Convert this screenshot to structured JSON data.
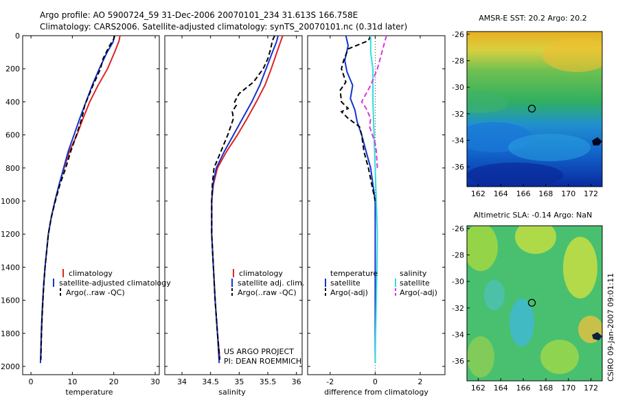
{
  "header": {
    "line1": "Argo profile: AO 5900724_59 31-Dec-2006 20070101_234 31.613S 166.758E",
    "line2": "Climatology: CARS2006. Satellite-adjusted climatology: synTS_20070101.nc (0.31d later)"
  },
  "credit": {
    "line1": "US ARGO PROJECT",
    "line2": "PI: DEAN ROEMMICH"
  },
  "stamp": "CSIRO 09-Jan-2007 09:01:11",
  "colors": {
    "climatology": "#dd2222",
    "satellite": "#1133cc",
    "argo": "#000000",
    "sal_satellite": "#33dddd",
    "sal_argo": "#dd33dd"
  },
  "chart_data": [
    {
      "type": "line",
      "panel": "temperature",
      "xlabel": "temperature",
      "ylabel": "",
      "xlim": [
        -2,
        31
      ],
      "ylim": [
        2050,
        0
      ],
      "xticks": [
        0,
        10,
        20,
        30
      ],
      "yticks": [
        0,
        200,
        400,
        600,
        800,
        1000,
        1200,
        1400,
        1600,
        1800,
        2000
      ],
      "legend": {
        "position": "lower-right",
        "entries": [
          "climatology",
          "satellite-adjusted climatology",
          "Argo(..raw -QC)"
        ]
      },
      "series": [
        {
          "name": "climatology",
          "style": "solid",
          "colorKey": "climatology",
          "points": [
            [
              21.5,
              0
            ],
            [
              21.3,
              30
            ],
            [
              20.2,
              100
            ],
            [
              18.5,
              200
            ],
            [
              16.2,
              300
            ],
            [
              14.2,
              400
            ],
            [
              12.6,
              500
            ],
            [
              11.1,
              600
            ],
            [
              9.3,
              700
            ],
            [
              8.0,
              800
            ],
            [
              6.8,
              900
            ],
            [
              5.8,
              1000
            ],
            [
              4.9,
              1100
            ],
            [
              4.2,
              1200
            ],
            [
              3.8,
              1300
            ],
            [
              3.4,
              1400
            ],
            [
              3.1,
              1500
            ],
            [
              2.9,
              1600
            ],
            [
              2.7,
              1700
            ],
            [
              2.55,
              1800
            ],
            [
              2.45,
              1900
            ],
            [
              2.4,
              1960
            ]
          ]
        },
        {
          "name": "satellite-adjusted climatology",
          "style": "solid",
          "colorKey": "satellite",
          "points": [
            [
              20.2,
              0
            ],
            [
              19.8,
              40
            ],
            [
              18.4,
              100
            ],
            [
              16.5,
              200
            ],
            [
              14.8,
              300
            ],
            [
              13.3,
              400
            ],
            [
              11.8,
              500
            ],
            [
              10.4,
              600
            ],
            [
              9.0,
              700
            ],
            [
              7.9,
              800
            ],
            [
              6.8,
              900
            ],
            [
              5.8,
              1000
            ],
            [
              4.9,
              1100
            ],
            [
              4.2,
              1200
            ],
            [
              3.8,
              1300
            ],
            [
              3.4,
              1400
            ],
            [
              3.1,
              1500
            ],
            [
              2.85,
              1600
            ],
            [
              2.65,
              1700
            ],
            [
              2.5,
              1800
            ],
            [
              2.4,
              1900
            ],
            [
              2.3,
              1980
            ]
          ]
        },
        {
          "name": "Argo(..raw -QC)",
          "style": "dashed",
          "colorKey": "argo",
          "points": [
            [
              20.2,
              0
            ],
            [
              20.0,
              20
            ],
            [
              19.0,
              60
            ],
            [
              17.4,
              140
            ],
            [
              16.8,
              200
            ],
            [
              15.0,
              300
            ],
            [
              13.0,
              420
            ],
            [
              12.3,
              500
            ],
            [
              11.0,
              600
            ],
            [
              9.6,
              700
            ],
            [
              8.4,
              800
            ],
            [
              7.0,
              900
            ],
            [
              5.9,
              1000
            ],
            [
              4.9,
              1100
            ],
            [
              4.2,
              1200
            ],
            [
              3.8,
              1300
            ],
            [
              3.4,
              1400
            ],
            [
              3.1,
              1500
            ],
            [
              2.9,
              1600
            ],
            [
              2.7,
              1700
            ],
            [
              2.55,
              1800
            ],
            [
              2.45,
              1900
            ],
            [
              2.4,
              1960
            ]
          ]
        }
      ]
    },
    {
      "type": "line",
      "panel": "salinity",
      "xlabel": "salinity",
      "ylabel": "",
      "xlim": [
        33.7,
        36.1
      ],
      "ylim": [
        2050,
        0
      ],
      "xticks": [
        34,
        34.5,
        35,
        35.5,
        36
      ],
      "yticks": [],
      "legend": {
        "position": "lower-right",
        "entries": [
          "climatology",
          "satellite adj. clim.",
          "Argo(..raw -QC)"
        ]
      },
      "series": [
        {
          "name": "climatology",
          "style": "solid",
          "colorKey": "climatology",
          "points": [
            [
              35.76,
              0
            ],
            [
              35.72,
              40
            ],
            [
              35.66,
              100
            ],
            [
              35.56,
              200
            ],
            [
              35.45,
              300
            ],
            [
              35.3,
              400
            ],
            [
              35.14,
              500
            ],
            [
              34.97,
              600
            ],
            [
              34.78,
              700
            ],
            [
              34.62,
              800
            ],
            [
              34.55,
              900
            ],
            [
              34.52,
              1000
            ],
            [
              34.52,
              1200
            ],
            [
              34.55,
              1400
            ],
            [
              34.58,
              1600
            ],
            [
              34.62,
              1800
            ],
            [
              34.66,
              1950
            ]
          ]
        },
        {
          "name": "satellite adj. clim.",
          "style": "solid",
          "colorKey": "satellite",
          "points": [
            [
              35.68,
              0
            ],
            [
              35.65,
              40
            ],
            [
              35.58,
              100
            ],
            [
              35.47,
              200
            ],
            [
              35.36,
              300
            ],
            [
              35.22,
              400
            ],
            [
              35.06,
              500
            ],
            [
              34.9,
              600
            ],
            [
              34.74,
              700
            ],
            [
              34.6,
              800
            ],
            [
              34.54,
              900
            ],
            [
              34.52,
              1000
            ],
            [
              34.52,
              1200
            ],
            [
              34.55,
              1400
            ],
            [
              34.58,
              1600
            ],
            [
              34.62,
              1800
            ],
            [
              34.65,
              1980
            ]
          ]
        },
        {
          "name": "Argo(..raw -QC)",
          "style": "dashed",
          "colorKey": "argo",
          "points": [
            [
              35.62,
              0
            ],
            [
              35.58,
              30
            ],
            [
              35.55,
              80
            ],
            [
              35.5,
              140
            ],
            [
              35.42,
              200
            ],
            [
              35.25,
              280
            ],
            [
              35.0,
              350
            ],
            [
              34.92,
              400
            ],
            [
              34.95,
              420
            ],
            [
              34.88,
              460
            ],
            [
              34.9,
              500
            ],
            [
              34.8,
              600
            ],
            [
              34.68,
              700
            ],
            [
              34.56,
              800
            ],
            [
              34.53,
              900
            ],
            [
              34.52,
              1000
            ],
            [
              34.52,
              1200
            ],
            [
              34.55,
              1400
            ],
            [
              34.58,
              1600
            ],
            [
              34.62,
              1800
            ],
            [
              34.66,
              1960
            ]
          ]
        }
      ]
    },
    {
      "type": "line",
      "panel": "difference",
      "xlabel": "difference from climatology",
      "ylabel": "",
      "xlim": [
        -3,
        3.1
      ],
      "ylim": [
        2050,
        0
      ],
      "xticks": [
        -2,
        0,
        2
      ],
      "yticks": [],
      "legend": {
        "position": "lower-middle",
        "headers": [
          "temperature",
          "salinity"
        ],
        "entries": [
          "satellite",
          "Argo(-adj)",
          "satellite",
          "Argo(-adj)"
        ]
      },
      "series": [
        {
          "name": "temperature satellite",
          "style": "solid",
          "colorKey": "satellite",
          "points": [
            [
              -1.3,
              0
            ],
            [
              -1.2,
              60
            ],
            [
              -1.35,
              150
            ],
            [
              -1.25,
              220
            ],
            [
              -1.0,
              300
            ],
            [
              -1.1,
              380
            ],
            [
              -0.9,
              450
            ],
            [
              -0.8,
              520
            ],
            [
              -0.6,
              600
            ],
            [
              -0.4,
              700
            ],
            [
              -0.2,
              800
            ],
            [
              -0.1,
              900
            ],
            [
              0.0,
              1000
            ],
            [
              0.0,
              1400
            ],
            [
              0.0,
              1800
            ],
            [
              0.0,
              1980
            ]
          ]
        },
        {
          "name": "temperature Argo(-adj)",
          "style": "dashed",
          "colorKey": "argo",
          "points": [
            [
              -0.2,
              0
            ],
            [
              -0.3,
              30
            ],
            [
              -1.2,
              80
            ],
            [
              -1.4,
              150
            ],
            [
              -1.5,
              200
            ],
            [
              -1.3,
              280
            ],
            [
              -1.55,
              330
            ],
            [
              -1.5,
              400
            ],
            [
              -1.2,
              440
            ],
            [
              -1.5,
              460
            ],
            [
              -1.2,
              500
            ],
            [
              -0.7,
              550
            ],
            [
              -0.6,
              600
            ],
            [
              -0.5,
              700
            ],
            [
              -0.3,
              800
            ],
            [
              -0.15,
              900
            ],
            [
              0.0,
              1000
            ]
          ]
        },
        {
          "name": "salinity satellite",
          "style": "solid",
          "colorKey": "sal_satellite",
          "points": [
            [
              -0.2,
              0
            ],
            [
              -0.2,
              100
            ],
            [
              -0.1,
              200
            ],
            [
              -0.1,
              400
            ],
            [
              -0.05,
              600
            ],
            [
              0.0,
              800
            ],
            [
              0.05,
              1000
            ],
            [
              0.1,
              1200
            ],
            [
              0.08,
              1400
            ],
            [
              0.05,
              1600
            ],
            [
              0.02,
              1800
            ],
            [
              0.0,
              1980
            ]
          ]
        },
        {
          "name": "salinity Argo(-adj)",
          "style": "dashed",
          "colorKey": "sal_argo",
          "points": [
            [
              0.5,
              0
            ],
            [
              0.4,
              50
            ],
            [
              0.3,
              100
            ],
            [
              0.1,
              200
            ],
            [
              -0.2,
              300
            ],
            [
              -0.6,
              400
            ],
            [
              -0.4,
              440
            ],
            [
              -0.2,
              500
            ],
            [
              -0.25,
              550
            ],
            [
              0.0,
              650
            ],
            [
              0.05,
              700
            ],
            [
              0.1,
              800
            ]
          ]
        }
      ]
    },
    {
      "type": "heatmap",
      "panel": "sst_map",
      "title": "AMSR-E SST: 20.2 Argo: 20.2",
      "xlim": [
        161,
        173
      ],
      "ylim": [
        -37.5,
        -25.8
      ],
      "xticks": [
        162,
        164,
        166,
        168,
        170,
        172
      ],
      "yticks": [
        -26,
        -28,
        -30,
        -32,
        -34,
        -36
      ],
      "marker": {
        "lon": 166.758,
        "lat": -31.613
      }
    },
    {
      "type": "heatmap",
      "panel": "sla_map",
      "title": "Altimetric SLA: -0.14 Argo: NaN",
      "xlim": [
        161,
        173
      ],
      "ylim": [
        -37.5,
        -25.8
      ],
      "xticks": [
        162,
        164,
        166,
        168,
        170,
        172
      ],
      "yticks": [
        -26,
        -28,
        -30,
        -32,
        -34,
        -36
      ],
      "marker": {
        "lon": 166.758,
        "lat": -31.613
      }
    }
  ]
}
